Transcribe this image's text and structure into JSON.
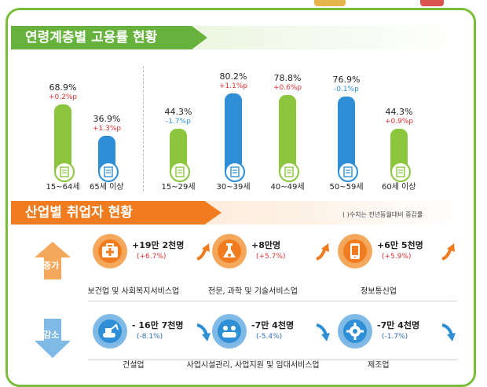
{
  "sections": {
    "age_title": "연령계층별 고용률 현황",
    "industry_title": "산업별 취업자 현황",
    "industry_note": "( )수치는 전년동월대비 증감률"
  },
  "colors": {
    "green": "#8cc63f",
    "blue": "#2f8fd6",
    "orange": "#f07c1f",
    "red": "#e03030",
    "increase_arrow": "#f4a85c",
    "decrease_arrow": "#7fb9e6"
  },
  "chart_data": {
    "type": "bar",
    "categories": [
      "15~64세",
      "65세 이상",
      "15~29세",
      "30~39세",
      "40~49세",
      "50~59세",
      "60세 이상"
    ],
    "values": [
      68.9,
      36.9,
      44.3,
      80.2,
      78.8,
      76.9,
      44.3
    ],
    "value_labels": [
      "68.9%",
      "36.9%",
      "44.3%",
      "80.2%",
      "78.8%",
      "76.9%",
      "44.3%"
    ],
    "changes": [
      "+0.2%p",
      "+1.3%p",
      "-1.7%p",
      "+1.1%p",
      "+0.6%p",
      "-0.1%p",
      "+0.9%p"
    ],
    "colors": [
      "green",
      "blue",
      "green",
      "blue",
      "green",
      "blue",
      "green"
    ]
  },
  "industry": {
    "increase_label": "증가",
    "decrease_label": "감소",
    "increase": [
      {
        "value": "+19만 2천명",
        "rate": "(+6.7%)",
        "label": "보건업 및 사회복지서비스업",
        "icon": "first-aid-kit-icon"
      },
      {
        "value": "+8만명",
        "rate": "(+5.7%)",
        "label": "전문, 과학 및 기술서비스업",
        "icon": "flask-icon"
      },
      {
        "value": "+6만 5천명",
        "rate": "(+5.9%)",
        "label": "정보통신업",
        "icon": "smartphone-icon"
      }
    ],
    "decrease": [
      {
        "value": "- 16만 7천명",
        "rate": "(-8.1%)",
        "label": "건설업",
        "icon": "excavator-icon"
      },
      {
        "value": "-7만 4천명",
        "rate": "(-5.4%)",
        "label": "사업시설관리, 사업지원 및 임대서비스업",
        "icon": "facility-support-icon"
      },
      {
        "value": "-7만 4천명",
        "rate": "(-1.7%)",
        "label": "제조업",
        "icon": "gears-icon"
      }
    ]
  }
}
